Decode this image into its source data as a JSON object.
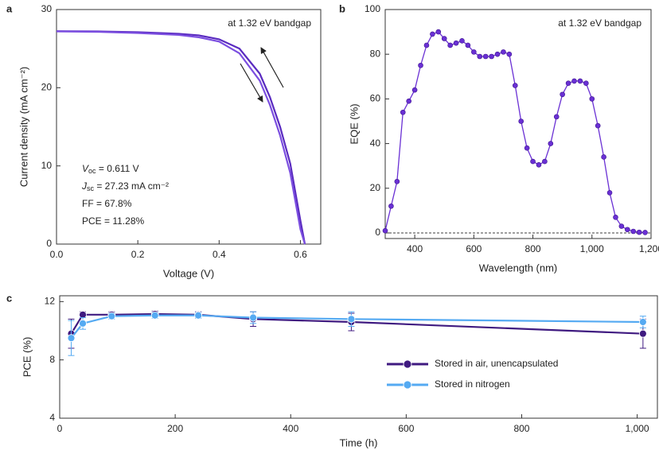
{
  "chart_data": [
    {
      "panel": "a",
      "type": "line",
      "annotation": "at 1.32 eV bandgap",
      "xlabel": "Voltage (V)",
      "ylabel": "Current density (mA cm⁻²)",
      "stats": [
        {
          "symbol": "V",
          "sub": "oc",
          "text": " = 0.611 V"
        },
        {
          "symbol": "J",
          "sub": "sc",
          "text": " = 27.23 mA cm⁻²"
        },
        {
          "text": "FF = 67.8%"
        },
        {
          "text": "PCE = 11.28%"
        }
      ],
      "x": [
        0,
        0.1,
        0.2,
        0.3,
        0.35,
        0.4,
        0.45,
        0.5,
        0.525,
        0.55,
        0.575,
        0.6,
        0.611
      ],
      "series": [
        {
          "color": "#5a2bc0",
          "values": [
            27.23,
            27.2,
            27.1,
            26.9,
            26.7,
            26.2,
            25.0,
            21.8,
            18.8,
            15.0,
            10.3,
            3.0,
            0
          ]
        },
        {
          "color": "#7b4ee0",
          "values": [
            27.2,
            27.15,
            27.0,
            26.75,
            26.45,
            25.9,
            24.4,
            20.9,
            17.8,
            13.9,
            9.1,
            1.9,
            0
          ]
        }
      ],
      "xlim": [
        0,
        0.65
      ],
      "ylim": [
        0,
        30
      ],
      "xticks": [
        {
          "value": 0,
          "label": "0.0"
        },
        0.2,
        0.4,
        0.6
      ],
      "yticks": [
        0,
        10,
        20,
        30
      ]
    },
    {
      "panel": "b",
      "type": "line",
      "markers": true,
      "baseline_dashed": true,
      "annotation": "at 1.32 eV bandgap",
      "xlabel": "Wavelength (nm)",
      "ylabel": "EQE (%)",
      "x": [
        300,
        320,
        340,
        360,
        380,
        400,
        420,
        440,
        460,
        480,
        500,
        520,
        540,
        560,
        580,
        600,
        620,
        640,
        660,
        680,
        700,
        720,
        740,
        760,
        780,
        800,
        820,
        840,
        860,
        880,
        900,
        920,
        940,
        960,
        980,
        1000,
        1020,
        1040,
        1060,
        1080,
        1100,
        1120,
        1140,
        1160,
        1180
      ],
      "series": [
        {
          "color": "#6a30d4",
          "values": [
            1,
            12,
            23,
            54,
            59,
            64,
            75,
            84,
            89,
            90,
            87,
            84,
            85,
            86,
            84,
            81,
            79,
            79,
            79,
            80,
            81,
            80,
            66,
            50,
            38,
            32,
            30.5,
            32,
            40,
            52,
            62,
            67,
            68,
            68,
            67,
            60,
            48,
            34,
            18,
            7,
            3,
            1.5,
            0.7,
            0.3,
            0.2
          ]
        }
      ],
      "xlim": [
        300,
        1200
      ],
      "ylim": [
        -2.5,
        100
      ],
      "xticks": [
        400,
        600,
        800,
        {
          "value": 1000,
          "label": "1,000"
        },
        {
          "value": 1200,
          "label": "1,200"
        }
      ],
      "yticks": [
        0,
        20,
        40,
        60,
        80,
        100
      ]
    },
    {
      "panel": "c",
      "type": "line",
      "markers": true,
      "legend": "lower right",
      "xlabel": "Time (h)",
      "ylabel": "PCE (%)",
      "x": [
        20,
        40,
        90,
        165,
        240,
        335,
        505,
        1010
      ],
      "series": [
        {
          "name": "Stored in air, unencapsulated",
          "color": "#3f1a80",
          "values": [
            9.8,
            11.1,
            11.1,
            11.15,
            11.1,
            10.8,
            10.6,
            9.8
          ],
          "errors": [
            1.0,
            0.2,
            0.2,
            0.2,
            0.2,
            0.5,
            0.6,
            1.0
          ]
        },
        {
          "name": "Stored in nitrogen",
          "color": "#55aaf2",
          "values": [
            9.5,
            10.5,
            11.0,
            11.05,
            11.05,
            10.9,
            10.8,
            10.6
          ],
          "errors": [
            1.2,
            0.4,
            0.2,
            0.2,
            0.2,
            0.4,
            0.5,
            0.4
          ]
        }
      ],
      "xlim": [
        0,
        1035
      ],
      "ylim": [
        4,
        12.4
      ],
      "xticks": [
        0,
        200,
        400,
        600,
        800,
        {
          "value": 1000,
          "label": "1,000"
        }
      ],
      "yticks": [
        4,
        8,
        12
      ]
    }
  ]
}
